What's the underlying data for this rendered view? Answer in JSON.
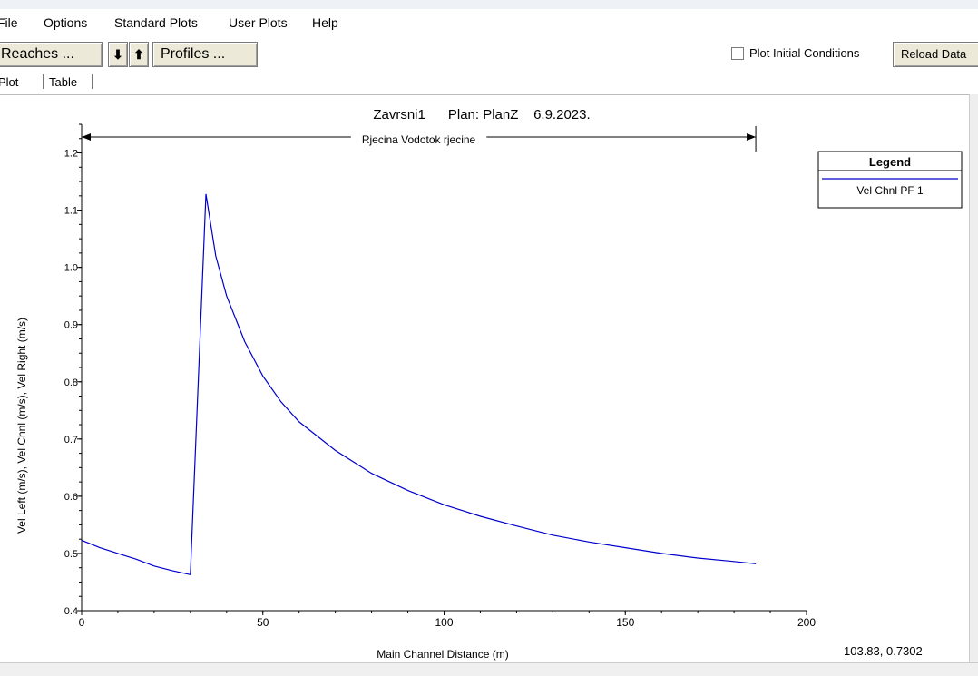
{
  "menu": {
    "items": [
      "File",
      "Options",
      "Standard Plots",
      "User Plots",
      "Help"
    ]
  },
  "toolbar": {
    "reaches_label": "Reaches ...",
    "down_arrow": "⬇",
    "up_arrow": "⬆",
    "profiles_label": "Profiles ...",
    "plot_initial_conditions": "Plot Initial Conditions",
    "plot_initial_conditions_checked": false,
    "reload_label": "Reload Data"
  },
  "tabs": [
    "Plot",
    "Table"
  ],
  "chart_data": {
    "type": "line",
    "title": "Zavrsni1      Plan: PlanZ    6.9.2023.",
    "reach_label": "Rjecina Vodotok rjecine",
    "xlabel": "Main Channel Distance (m)",
    "ylabel": "Vel Left (m/s), Vel Chnl (m/s), Vel Right (m/s)",
    "xlim": [
      0,
      200
    ],
    "ylim": [
      0.4,
      1.25
    ],
    "xticks": [
      0,
      50,
      100,
      150,
      200
    ],
    "yticks": [
      0.4,
      0.5,
      0.6,
      0.7,
      0.8,
      0.9,
      1.0,
      1.1,
      1.2
    ],
    "reach_extent": [
      0,
      186
    ],
    "legend_title": "Legend",
    "series": [
      {
        "name": "Vel Chnl PF 1",
        "color": "#0000cc",
        "x": [
          0,
          5,
          10,
          15,
          20,
          25,
          30,
          34.3,
          35,
          37,
          40,
          45,
          50,
          55,
          60,
          70,
          80,
          90,
          100,
          110,
          120,
          130,
          140,
          150,
          160,
          170,
          180,
          186
        ],
        "y": [
          0.523,
          0.51,
          0.5,
          0.49,
          0.478,
          0.47,
          0.463,
          1.128,
          1.1,
          1.02,
          0.95,
          0.87,
          0.81,
          0.765,
          0.73,
          0.68,
          0.64,
          0.61,
          0.585,
          0.565,
          0.548,
          0.532,
          0.52,
          0.51,
          0.5,
          0.492,
          0.486,
          0.482
        ]
      }
    ]
  },
  "status": {
    "coords": "103.83, 0.7302"
  }
}
